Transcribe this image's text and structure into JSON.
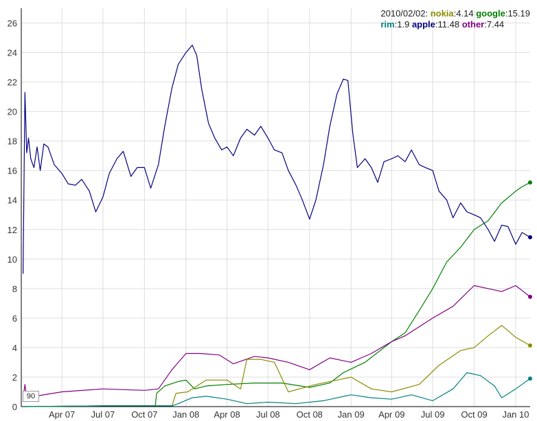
{
  "legend": {
    "date": "2010/02/02:",
    "entries": [
      {
        "name": "nokia",
        "value": "4.14",
        "color": "#8b8b00"
      },
      {
        "name": "google",
        "value": "15.19",
        "color": "#008000"
      },
      {
        "name": "rim",
        "value": "1.9",
        "color": "#008080"
      },
      {
        "name": "apple",
        "value": "11.48",
        "color": "#000080"
      },
      {
        "name": "other",
        "value": "7.44",
        "color": "#800080"
      }
    ]
  },
  "roller_period": "90",
  "chart_data": {
    "type": "line",
    "title": "",
    "xlabel": "",
    "ylabel": "",
    "ylim": [
      0,
      27
    ],
    "xlim": [
      "2007-01-01",
      "2010-02-02"
    ],
    "y_ticks": [
      0,
      2,
      4,
      6,
      8,
      10,
      12,
      14,
      16,
      18,
      20,
      22,
      24,
      26
    ],
    "x_ticks": [
      {
        "date": "2007-04-01",
        "label": "Apr 07"
      },
      {
        "date": "2007-07-01",
        "label": "Jul 07"
      },
      {
        "date": "2007-10-01",
        "label": "Oct 07"
      },
      {
        "date": "2008-01-01",
        "label": "Jan 08"
      },
      {
        "date": "2008-04-01",
        "label": "Apr 08"
      },
      {
        "date": "2008-07-01",
        "label": "Jul 08"
      },
      {
        "date": "2008-10-01",
        "label": "Oct 08"
      },
      {
        "date": "2009-01-01",
        "label": "Jan 09"
      },
      {
        "date": "2009-04-01",
        "label": "Apr 09"
      },
      {
        "date": "2009-07-01",
        "label": "Jul 09"
      },
      {
        "date": "2009-10-01",
        "label": "Oct 09"
      },
      {
        "date": "2010-01-01",
        "label": "Jan 10"
      }
    ],
    "grid": true,
    "legend_position": "top-right",
    "series": [
      {
        "name": "apple",
        "color": "#000080",
        "points": [
          [
            "2007-01-05",
            9.0
          ],
          [
            "2007-01-09",
            21.3
          ],
          [
            "2007-01-13",
            17.2
          ],
          [
            "2007-01-17",
            18.2
          ],
          [
            "2007-01-22",
            16.8
          ],
          [
            "2007-01-29",
            16.2
          ],
          [
            "2007-02-05",
            17.6
          ],
          [
            "2007-02-12",
            16.0
          ],
          [
            "2007-02-20",
            17.8
          ],
          [
            "2007-03-01",
            17.6
          ],
          [
            "2007-03-15",
            16.4
          ],
          [
            "2007-04-01",
            15.8
          ],
          [
            "2007-04-15",
            15.1
          ],
          [
            "2007-05-01",
            15.0
          ],
          [
            "2007-05-15",
            15.4
          ],
          [
            "2007-06-01",
            14.6
          ],
          [
            "2007-06-15",
            13.2
          ],
          [
            "2007-07-01",
            14.2
          ],
          [
            "2007-07-15",
            15.8
          ],
          [
            "2007-08-01",
            16.8
          ],
          [
            "2007-08-15",
            17.3
          ],
          [
            "2007-09-01",
            15.6
          ],
          [
            "2007-09-15",
            16.2
          ],
          [
            "2007-10-01",
            16.2
          ],
          [
            "2007-10-15",
            14.8
          ],
          [
            "2007-11-01",
            16.4
          ],
          [
            "2007-11-15",
            19.0
          ],
          [
            "2007-12-01",
            21.6
          ],
          [
            "2007-12-15",
            23.2
          ],
          [
            "2008-01-01",
            24.0
          ],
          [
            "2008-01-15",
            24.5
          ],
          [
            "2008-01-25",
            23.8
          ],
          [
            "2008-02-05",
            21.5
          ],
          [
            "2008-02-20",
            19.2
          ],
          [
            "2008-03-05",
            18.2
          ],
          [
            "2008-03-20",
            17.4
          ],
          [
            "2008-04-01",
            17.6
          ],
          [
            "2008-04-15",
            17.0
          ],
          [
            "2008-05-01",
            18.2
          ],
          [
            "2008-05-15",
            18.8
          ],
          [
            "2008-06-01",
            18.4
          ],
          [
            "2008-06-15",
            19.0
          ],
          [
            "2008-07-01",
            18.2
          ],
          [
            "2008-07-15",
            17.4
          ],
          [
            "2008-08-01",
            17.2
          ],
          [
            "2008-08-15",
            16.0
          ],
          [
            "2008-09-01",
            15.0
          ],
          [
            "2008-09-15",
            14.0
          ],
          [
            "2008-10-01",
            12.7
          ],
          [
            "2008-10-15",
            14.0
          ],
          [
            "2008-11-01",
            16.4
          ],
          [
            "2008-11-15",
            19.0
          ],
          [
            "2008-12-01",
            21.2
          ],
          [
            "2008-12-15",
            22.2
          ],
          [
            "2008-12-25",
            22.1
          ],
          [
            "2009-01-05",
            18.5
          ],
          [
            "2009-01-15",
            16.2
          ],
          [
            "2009-02-01",
            16.8
          ],
          [
            "2009-02-15",
            16.2
          ],
          [
            "2009-03-01",
            15.2
          ],
          [
            "2009-03-15",
            16.6
          ],
          [
            "2009-04-01",
            16.8
          ],
          [
            "2009-04-15",
            17.0
          ],
          [
            "2009-05-01",
            16.6
          ],
          [
            "2009-05-15",
            17.4
          ],
          [
            "2009-06-01",
            16.4
          ],
          [
            "2009-06-15",
            16.2
          ],
          [
            "2009-07-01",
            16.0
          ],
          [
            "2009-07-15",
            14.6
          ],
          [
            "2009-08-01",
            14.0
          ],
          [
            "2009-08-15",
            12.8
          ],
          [
            "2009-09-01",
            13.8
          ],
          [
            "2009-09-15",
            13.2
          ],
          [
            "2009-10-01",
            13.0
          ],
          [
            "2009-10-15",
            12.8
          ],
          [
            "2009-11-01",
            12.0
          ],
          [
            "2009-11-15",
            11.2
          ],
          [
            "2009-12-01",
            12.3
          ],
          [
            "2009-12-15",
            12.2
          ],
          [
            "2010-01-01",
            11.0
          ],
          [
            "2010-01-15",
            11.8
          ],
          [
            "2010-02-02",
            11.48
          ]
        ]
      },
      {
        "name": "google",
        "color": "#008000",
        "points": [
          [
            "2007-01-05",
            0.0
          ],
          [
            "2007-07-01",
            0.05
          ],
          [
            "2007-10-01",
            0.05
          ],
          [
            "2007-10-25",
            0.05
          ],
          [
            "2007-10-28",
            0.9
          ],
          [
            "2007-11-15",
            1.4
          ],
          [
            "2007-12-15",
            1.7
          ],
          [
            "2008-01-01",
            1.8
          ],
          [
            "2008-01-20",
            1.2
          ],
          [
            "2008-02-15",
            1.4
          ],
          [
            "2008-04-01",
            1.5
          ],
          [
            "2008-06-01",
            1.6
          ],
          [
            "2008-08-01",
            1.6
          ],
          [
            "2008-10-01",
            1.3
          ],
          [
            "2008-11-15",
            1.6
          ],
          [
            "2008-12-15",
            2.3
          ],
          [
            "2009-02-01",
            3.0
          ],
          [
            "2009-04-01",
            4.4
          ],
          [
            "2009-05-01",
            5.0
          ],
          [
            "2009-06-01",
            6.5
          ],
          [
            "2009-07-01",
            8.0
          ],
          [
            "2009-08-01",
            9.8
          ],
          [
            "2009-09-01",
            10.8
          ],
          [
            "2009-10-01",
            12.0
          ],
          [
            "2009-11-01",
            12.6
          ],
          [
            "2009-12-01",
            13.8
          ],
          [
            "2010-01-01",
            14.6
          ],
          [
            "2010-01-15",
            14.9
          ],
          [
            "2010-02-02",
            15.19
          ]
        ]
      },
      {
        "name": "other",
        "color": "#800080",
        "points": [
          [
            "2007-01-05",
            0.5
          ],
          [
            "2007-01-09",
            1.5
          ],
          [
            "2007-01-13",
            0.6
          ],
          [
            "2007-02-01",
            0.7
          ],
          [
            "2007-04-01",
            1.0
          ],
          [
            "2007-07-01",
            1.2
          ],
          [
            "2007-10-01",
            1.1
          ],
          [
            "2007-11-01",
            1.2
          ],
          [
            "2007-12-01",
            2.5
          ],
          [
            "2008-01-01",
            3.6
          ],
          [
            "2008-02-01",
            3.6
          ],
          [
            "2008-03-15",
            3.5
          ],
          [
            "2008-04-15",
            2.9
          ],
          [
            "2008-06-01",
            3.4
          ],
          [
            "2008-07-01",
            3.3
          ],
          [
            "2008-08-15",
            3.0
          ],
          [
            "2008-10-01",
            2.5
          ],
          [
            "2008-11-15",
            3.3
          ],
          [
            "2009-01-01",
            3.0
          ],
          [
            "2009-02-15",
            3.6
          ],
          [
            "2009-04-01",
            4.4
          ],
          [
            "2009-05-01",
            4.8
          ],
          [
            "2009-07-01",
            6.0
          ],
          [
            "2009-08-15",
            6.8
          ],
          [
            "2009-10-01",
            8.2
          ],
          [
            "2009-11-01",
            8.0
          ],
          [
            "2009-12-01",
            7.8
          ],
          [
            "2010-01-01",
            8.2
          ],
          [
            "2010-02-02",
            7.44
          ]
        ]
      },
      {
        "name": "nokia",
        "color": "#8b8b00",
        "points": [
          [
            "2007-01-05",
            0.0
          ],
          [
            "2007-07-01",
            0.05
          ],
          [
            "2007-12-01",
            0.05
          ],
          [
            "2007-12-10",
            0.9
          ],
          [
            "2008-01-05",
            1.0
          ],
          [
            "2008-02-15",
            1.8
          ],
          [
            "2008-04-01",
            1.8
          ],
          [
            "2008-05-01",
            1.2
          ],
          [
            "2008-05-15",
            3.2
          ],
          [
            "2008-06-15",
            3.2
          ],
          [
            "2008-07-15",
            3.0
          ],
          [
            "2008-08-15",
            1.0
          ],
          [
            "2008-10-15",
            1.5
          ],
          [
            "2008-12-01",
            1.8
          ],
          [
            "2009-01-01",
            2.0
          ],
          [
            "2009-02-15",
            1.2
          ],
          [
            "2009-04-01",
            1.0
          ],
          [
            "2009-06-01",
            1.5
          ],
          [
            "2009-07-15",
            2.8
          ],
          [
            "2009-09-01",
            3.8
          ],
          [
            "2009-10-01",
            4.0
          ],
          [
            "2009-11-01",
            4.8
          ],
          [
            "2009-12-01",
            5.5
          ],
          [
            "2010-01-01",
            4.7
          ],
          [
            "2010-02-02",
            4.14
          ]
        ]
      },
      {
        "name": "rim",
        "color": "#008080",
        "points": [
          [
            "2007-01-05",
            0.0
          ],
          [
            "2007-07-01",
            0.05
          ],
          [
            "2007-12-01",
            0.05
          ],
          [
            "2007-12-15",
            0.2
          ],
          [
            "2008-01-15",
            0.6
          ],
          [
            "2008-02-15",
            0.7
          ],
          [
            "2008-04-01",
            0.5
          ],
          [
            "2008-05-15",
            0.2
          ],
          [
            "2008-07-01",
            0.3
          ],
          [
            "2008-09-01",
            0.2
          ],
          [
            "2008-11-01",
            0.4
          ],
          [
            "2009-01-01",
            0.8
          ],
          [
            "2009-02-15",
            0.6
          ],
          [
            "2009-04-01",
            0.5
          ],
          [
            "2009-05-15",
            0.8
          ],
          [
            "2009-07-01",
            0.4
          ],
          [
            "2009-08-15",
            1.2
          ],
          [
            "2009-09-15",
            2.3
          ],
          [
            "2009-10-15",
            2.1
          ],
          [
            "2009-11-15",
            1.4
          ],
          [
            "2009-12-01",
            0.6
          ],
          [
            "2010-01-01",
            1.2
          ],
          [
            "2010-02-02",
            1.9
          ]
        ]
      }
    ]
  }
}
